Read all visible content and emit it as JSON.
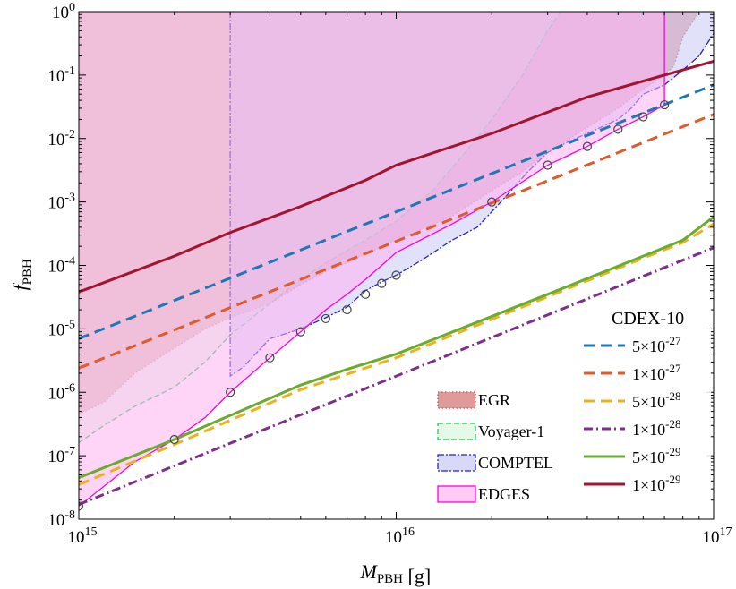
{
  "chart_data": {
    "type": "line",
    "xlabel": {
      "main": "M",
      "sub": "PBH",
      "unit": " [g]"
    },
    "ylabel": {
      "main": "f",
      "sub": "PBH"
    },
    "xscale": "log",
    "yscale": "log",
    "xlim": [
      1000000000000000.0,
      1e+17
    ],
    "ylim": [
      1e-08,
      1
    ],
    "x_ticks": [
      {
        "value": 1000000000000000.0,
        "base": "10",
        "exp": "15"
      },
      {
        "value": 1e+16,
        "base": "10",
        "exp": "16"
      },
      {
        "value": 1e+17,
        "base": "10",
        "exp": "17"
      }
    ],
    "y_ticks": [
      {
        "value": 1e-08,
        "base": "10",
        "exp": "-8"
      },
      {
        "value": 1e-07,
        "base": "10",
        "exp": "-7"
      },
      {
        "value": 1e-06,
        "base": "10",
        "exp": "-6"
      },
      {
        "value": 1e-05,
        "base": "10",
        "exp": "-5"
      },
      {
        "value": 0.0001,
        "base": "10",
        "exp": "-4"
      },
      {
        "value": 0.001,
        "base": "10",
        "exp": "-3"
      },
      {
        "value": 0.01,
        "base": "10",
        "exp": "-2"
      },
      {
        "value": 0.1,
        "base": "10",
        "exp": "-1"
      },
      {
        "value": 1,
        "base": "10",
        "exp": "0"
      }
    ],
    "constraints": [
      {
        "name": "EGR",
        "fill": "#d98a88",
        "fill_opacity": 0.7,
        "stroke": "#c0504d",
        "dash": "1.5,2.5",
        "boundary": [
          [
            1000000000000000.0,
            4.5e-07
          ],
          [
            1200000000000000.0,
            7e-07
          ],
          [
            1500000000000000.0,
            2e-06
          ],
          [
            2000000000000000.0,
            5e-06
          ],
          [
            2500000000000000.0,
            1e-05
          ],
          [
            3000000000000000.0,
            1.5e-05
          ],
          [
            4000000000000000.0,
            2.5e-05
          ],
          [
            5000000000000000.0,
            5e-05
          ],
          [
            6000000000000000.0,
            8e-05
          ],
          [
            7000000000000000.0,
            0.00011
          ],
          [
            8000000000000000.0,
            0.00015
          ],
          [
            1e+16,
            0.00025
          ],
          [
            1.5e+16,
            0.0006
          ],
          [
            2e+16,
            0.0015
          ],
          [
            2.5e+16,
            0.003
          ],
          [
            3e+16,
            0.006
          ],
          [
            4e+16,
            0.015
          ],
          [
            5e+16,
            0.03
          ],
          [
            6e+16,
            0.06
          ],
          [
            7e+16,
            0.1
          ],
          [
            7.5e+16,
            0.14
          ],
          [
            8e+16,
            0.4
          ],
          [
            9e+16,
            1
          ]
        ]
      },
      {
        "name": "Voyager-1",
        "fill": "#d8f6d8",
        "fill_opacity": 0.5,
        "stroke": "#22c55e",
        "dash": "6,3",
        "boundary": [
          [
            1000000000000000.0,
            1.6e-07
          ],
          [
            1200000000000000.0,
            3e-07
          ],
          [
            1500000000000000.0,
            6e-07
          ],
          [
            2000000000000000.0,
            1.2e-06
          ],
          [
            2500000000000000.0,
            3e-06
          ],
          [
            3000000000000000.0,
            8e-06
          ],
          [
            4000000000000000.0,
            2.5e-05
          ],
          [
            5000000000000000.0,
            6e-05
          ],
          [
            6000000000000000.0,
            0.00011
          ],
          [
            8000000000000000.0,
            0.00025
          ],
          [
            1e+16,
            0.0005
          ],
          [
            1.3e+16,
            0.0015
          ],
          [
            1.6e+16,
            0.005
          ],
          [
            2e+16,
            0.02
          ],
          [
            2.5e+16,
            0.1
          ],
          [
            3e+16,
            0.5
          ],
          [
            3.3e+16,
            1
          ]
        ]
      },
      {
        "name": "COMPTEL",
        "fill": "#c8c8f5",
        "fill_opacity": 0.55,
        "stroke": "#2222cc",
        "dash": "7,2,2,2",
        "boundary": [
          [
            3000000000000000.0,
            1
          ],
          [
            3000000000000000.0,
            1.8e-06
          ],
          [
            3300000000000000.0,
            2.5e-06
          ],
          [
            4000000000000000.0,
            7e-06
          ],
          [
            5000000000000000.0,
            1e-05
          ],
          [
            6000000000000000.0,
            1.5e-05
          ],
          [
            7000000000000000.0,
            2.2e-05
          ],
          [
            8000000000000000.0,
            4e-05
          ],
          [
            9000000000000000.0,
            5.5e-05
          ],
          [
            1e+16,
            7e-05
          ],
          [
            1.2e+16,
            0.00012
          ],
          [
            1.5e+16,
            0.00025
          ],
          [
            1.8e+16,
            0.0004
          ],
          [
            2e+16,
            0.0007
          ],
          [
            2.3e+16,
            0.0015
          ],
          [
            2.6e+16,
            0.003
          ],
          [
            3e+16,
            0.006
          ],
          [
            3.5e+16,
            0.009
          ],
          [
            4e+16,
            0.012
          ],
          [
            5e+16,
            0.02
          ],
          [
            5.5e+16,
            0.03
          ],
          [
            6e+16,
            0.05
          ],
          [
            7e+16,
            0.07
          ],
          [
            8e+16,
            0.12
          ],
          [
            9e+16,
            0.2
          ],
          [
            1e+17,
            0.45
          ],
          [
            1e+17,
            1
          ]
        ]
      },
      {
        "name": "EDGES",
        "fill": "#ffb3f0",
        "fill_opacity": 0.55,
        "stroke": "#ff00e0",
        "dash": "",
        "boundary": [
          [
            1000000000000000.0,
            1.6e-08
          ],
          [
            1500000000000000.0,
            8e-08
          ],
          [
            2000000000000000.0,
            1.8e-07
          ],
          [
            2500000000000000.0,
            4e-07
          ],
          [
            3000000000000000.0,
            1e-06
          ],
          [
            4000000000000000.0,
            3.5e-06
          ],
          [
            5000000000000000.0,
            9e-06
          ],
          [
            6000000000000000.0,
            2e-05
          ],
          [
            7000000000000000.0,
            3.5e-05
          ],
          [
            8000000000000000.0,
            6e-05
          ],
          [
            9000000000000000.0,
            0.0001
          ],
          [
            1e+16,
            0.00016
          ],
          [
            1.5e+16,
            0.00045
          ],
          [
            2e+16,
            0.001
          ],
          [
            3e+16,
            0.0038
          ],
          [
            4e+16,
            0.0075
          ],
          [
            5e+16,
            0.014
          ],
          [
            6e+16,
            0.022
          ],
          [
            7e+16,
            0.034
          ],
          [
            7e+16,
            1
          ]
        ],
        "markers": [
          [
            1000000000000000.0,
            1.6e-08
          ],
          [
            2000000000000000.0,
            1.8e-07
          ],
          [
            3000000000000000.0,
            1e-06
          ],
          [
            4000000000000000.0,
            3.5e-06
          ],
          [
            5000000000000000.0,
            9e-06
          ],
          [
            6000000000000000.0,
            1.45e-05
          ],
          [
            7000000000000000.0,
            2e-05
          ],
          [
            8000000000000000.0,
            3.5e-05
          ],
          [
            9000000000000000.0,
            5.2e-05
          ],
          [
            1e+16,
            7e-05
          ],
          [
            2e+16,
            0.001
          ],
          [
            3e+16,
            0.0038
          ],
          [
            4e+16,
            0.0075
          ],
          [
            5e+16,
            0.014
          ],
          [
            6e+16,
            0.022
          ],
          [
            7e+16,
            0.034
          ]
        ]
      }
    ],
    "series": [
      {
        "name": "5×10⁻²⁷",
        "base": "5",
        "exp": "-27",
        "color": "#1f77b4",
        "style": "dashed",
        "points": [
          [
            1000000000000000.0,
            7e-06
          ],
          [
            1e+17,
            0.07
          ]
        ]
      },
      {
        "name": "1×10⁻²⁷",
        "base": "1",
        "exp": "-27",
        "color": "#e05a2b",
        "style": "dashed",
        "points": [
          [
            1000000000000000.0,
            2.4e-06
          ],
          [
            1e+17,
            0.024
          ]
        ]
      },
      {
        "name": "5×10⁻²⁸",
        "base": "5",
        "exp": "-28",
        "color": "#edb120",
        "style": "dashed",
        "points": [
          [
            1000000000000000.0,
            3.5e-08
          ],
          [
            2000000000000000.0,
            1.5e-07
          ],
          [
            5000000000000000.0,
            1.1e-06
          ],
          [
            1e+16,
            3.5e-06
          ],
          [
            3e+16,
            3.2e-05
          ],
          [
            6e+16,
            0.00013
          ],
          [
            8e+16,
            0.00023
          ],
          [
            1e+17,
            0.00045
          ]
        ]
      },
      {
        "name": "1×10⁻²⁸",
        "base": "1",
        "exp": "-28",
        "color": "#7e2f8e",
        "style": "dashdot",
        "points": [
          [
            1000000000000000.0,
            1.7e-08
          ],
          [
            1e+17,
            0.00019
          ]
        ]
      },
      {
        "name": "5×10⁻²⁹",
        "base": "5",
        "exp": "-29",
        "color": "#6aac2f",
        "style": "solid",
        "points": [
          [
            1000000000000000.0,
            4.5e-08
          ],
          [
            2000000000000000.0,
            1.8e-07
          ],
          [
            5000000000000000.0,
            1.3e-06
          ],
          [
            7000000000000000.0,
            2.3e-06
          ],
          [
            1e+16,
            4e-06
          ],
          [
            3e+16,
            3.5e-05
          ],
          [
            6e+16,
            0.00014
          ],
          [
            8e+16,
            0.00025
          ],
          [
            1e+17,
            0.00058
          ]
        ]
      },
      {
        "name": "1×10⁻²⁹",
        "base": "1",
        "exp": "-29",
        "color": "#a2142f",
        "style": "solid",
        "points": [
          [
            1000000000000000.0,
            3.8e-05
          ],
          [
            2000000000000000.0,
            0.00014
          ],
          [
            3000000000000000.0,
            0.00033
          ],
          [
            5000000000000000.0,
            0.00085
          ],
          [
            8000000000000000.0,
            0.0022
          ],
          [
            1e+16,
            0.0038
          ],
          [
            2e+16,
            0.012
          ],
          [
            4e+16,
            0.045
          ],
          [
            7e+16,
            0.1
          ],
          [
            1e+17,
            0.165
          ]
        ]
      }
    ],
    "legend_constraints": [
      "EGR",
      "Voyager-1",
      "COMPTEL",
      "EDGES"
    ],
    "legend_title": "CDEX-10",
    "legend_placement": "bottom-right"
  }
}
